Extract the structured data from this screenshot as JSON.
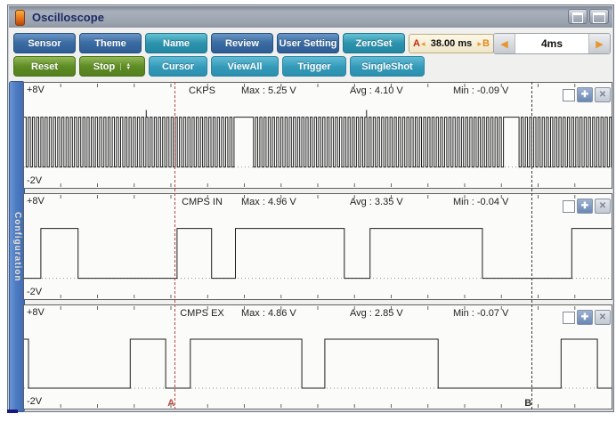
{
  "window": {
    "title": "Oscilloscope"
  },
  "toolbar": {
    "row1": [
      {
        "label": "Sensor",
        "variant": "blue"
      },
      {
        "label": "Theme",
        "variant": "blue"
      },
      {
        "label": "Name",
        "variant": "teal"
      },
      {
        "label": "Review",
        "variant": "blue"
      },
      {
        "label": "User Setting",
        "variant": "blue"
      },
      {
        "label": "ZeroSet",
        "variant": "teal"
      }
    ],
    "row2": [
      {
        "label": "Reset",
        "variant": "green"
      },
      {
        "label": "Stop",
        "variant": "green"
      },
      {
        "label": "Cursor",
        "variant": "teal2"
      },
      {
        "label": "ViewAll",
        "variant": "teal2"
      },
      {
        "label": "Trigger",
        "variant": "teal2"
      },
      {
        "label": "SingleShot",
        "variant": "teal2"
      }
    ],
    "ab_readout": {
      "a_label": "A",
      "left_arrow": "◂",
      "value": "38.00 ms",
      "right_arrow": "▸",
      "b_label": "B"
    },
    "timebase": {
      "left_arrow": "◀",
      "value": "4ms",
      "right_arrow": "▶"
    }
  },
  "sidebar": {
    "label": "Configuration"
  },
  "channels": [
    {
      "name": "CKPS",
      "top_label": "+8V",
      "bottom_label": "-2V",
      "max": "Max : 5.25 V",
      "avg": "Avg : 4.10 V",
      "min": "Min : -0.09 V"
    },
    {
      "name": "CMPS IN",
      "top_label": "+8V",
      "bottom_label": "-2V",
      "max": "Max : 4.96 V",
      "avg": "Avg : 3.35 V",
      "min": "Min : -0.04 V"
    },
    {
      "name": "CMPS EX",
      "top_label": "+8V",
      "bottom_label": "-2V",
      "max": "Max : 4.86 V",
      "avg": "Avg : 2.85 V",
      "min": "Min : -0.07 V"
    }
  ],
  "cursors": {
    "a": {
      "label": "A",
      "frac": 0.2575
    },
    "b": {
      "label": "B",
      "frac": 0.863
    }
  },
  "colors": {
    "trace": "#1e1e1e",
    "cursor_a": "#b5473d",
    "cursor_b": "#3c3c3c",
    "accent_blue": "#3c6da3",
    "accent_teal": "#2d93ad",
    "accent_green": "#5e8c25"
  },
  "chart_data": [
    {
      "type": "line",
      "name": "CKPS",
      "signal": "pulse_train",
      "v_high": 5,
      "v_low": 0,
      "v_range": [
        -2,
        8
      ],
      "period_frac": 0.00715,
      "duty": 0.5,
      "gaps": [
        [
          0.355,
          0.387
        ],
        [
          0.816,
          0.839
        ]
      ],
      "spikes": [
        0.208,
        0.583
      ],
      "note": "dense crank-position square wave 0-5V with two missing-tooth gaps held high"
    },
    {
      "type": "line",
      "name": "CMPS IN",
      "signal": "edges",
      "v_high": 5,
      "v_low": 0,
      "v_range": [
        -2,
        8
      ],
      "initial": "low",
      "edges": [
        0.0286,
        0.0919,
        0.2605,
        0.3193,
        0.3599,
        0.5452,
        0.5889,
        0.7801,
        0.9322
      ]
    },
    {
      "type": "line",
      "name": "CMPS EX",
      "signal": "edges",
      "v_high": 5,
      "v_low": 0,
      "v_range": [
        -2,
        8
      ],
      "initial": "high",
      "edges": [
        0.0075,
        0.1807,
        0.241,
        0.2831,
        0.4729,
        0.512,
        0.7048,
        0.9141,
        0.9759
      ]
    }
  ]
}
